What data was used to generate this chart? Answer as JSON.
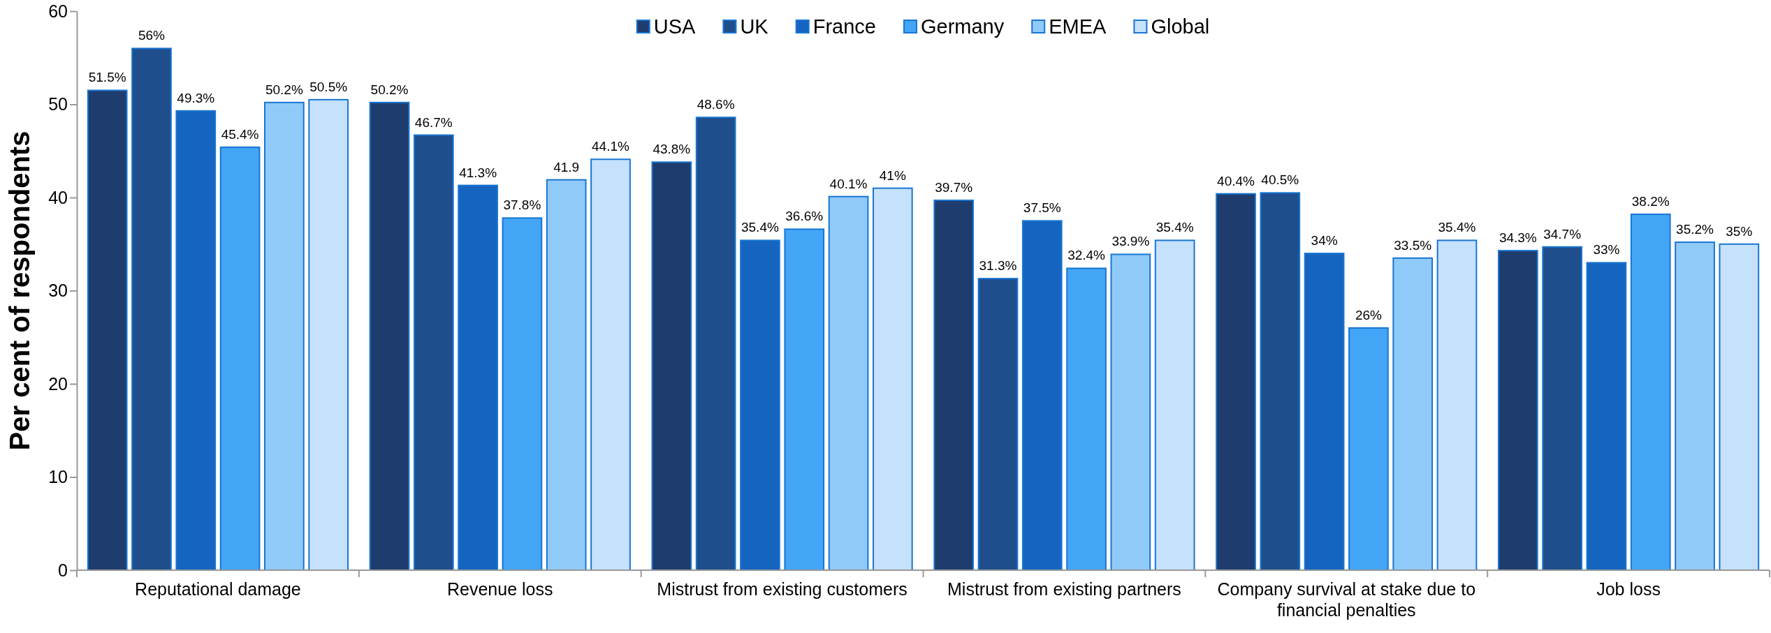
{
  "chart_data": {
    "type": "bar",
    "ylabel": "Per cent of respondents",
    "categories": [
      "Reputational damage",
      "Revenue loss",
      "Mistrust from existing customers",
      "Mistrust from existing partners",
      "Company survival at stake due to financial penalties",
      "Job loss"
    ],
    "series": [
      {
        "name": "USA",
        "color": "#1f3c6e",
        "values": [
          51.5,
          50.2,
          43.8,
          39.7,
          40.4,
          34.3
        ],
        "value_labels": [
          "51.5%",
          "50.2%",
          "43.8%",
          "39.7%",
          "40.4%",
          "34.3%"
        ]
      },
      {
        "name": "UK",
        "color": "#1f4e8c",
        "values": [
          56,
          46.7,
          48.6,
          31.3,
          40.5,
          34.7
        ],
        "value_labels": [
          "56%",
          "46.7%",
          "48.6%",
          "31.3%",
          "40.5%",
          "34.7%"
        ]
      },
      {
        "name": "France",
        "color": "#1565c0",
        "values": [
          49.3,
          41.3,
          35.4,
          37.5,
          34,
          33
        ],
        "value_labels": [
          "49.3%",
          "41.3%",
          "35.4%",
          "37.5%",
          "34%",
          "33%"
        ]
      },
      {
        "name": "Germany",
        "color": "#42a5f5",
        "values": [
          45.4,
          37.8,
          36.6,
          32.4,
          26,
          38.2
        ],
        "value_labels": [
          "45.4%",
          "37.8%",
          "36.6%",
          "32.4%",
          "26%",
          "38.2%"
        ]
      },
      {
        "name": "EMEA",
        "color": "#90caf9",
        "values": [
          50.2,
          41.9,
          40.1,
          33.9,
          33.5,
          35.2
        ],
        "value_labels": [
          "50.2%",
          "41.9",
          "40.1%",
          "33.9%",
          "33.5%",
          "35.2%"
        ]
      },
      {
        "name": "Global",
        "color": "#c5e1fb",
        "values": [
          50.5,
          44.1,
          41,
          35.4,
          35.4,
          35
        ],
        "value_labels": [
          "50.5%",
          "44.1%",
          "41%",
          "35.4%",
          "35.4%",
          "35%"
        ]
      }
    ],
    "ylim": [
      0,
      60
    ],
    "yticks": [
      0,
      10,
      20,
      30,
      40,
      50,
      60
    ],
    "grid": false,
    "legend": "top"
  }
}
